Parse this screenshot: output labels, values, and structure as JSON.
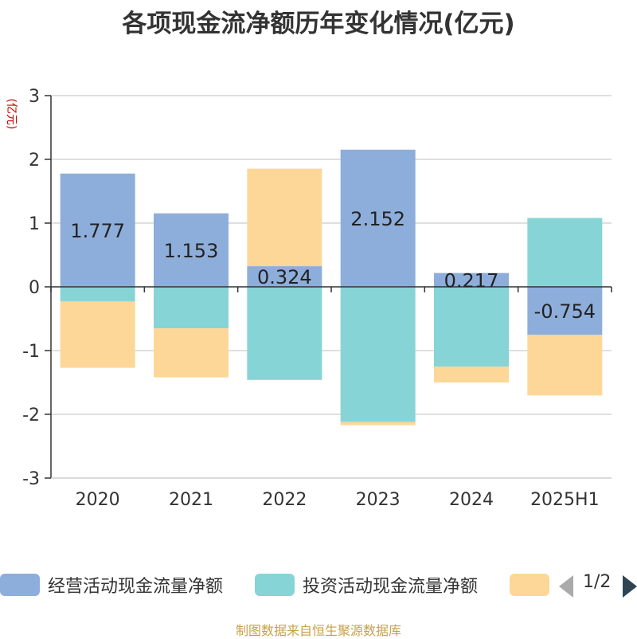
{
  "chart_data": {
    "type": "bar",
    "stacked": true,
    "title": "各项现金流净额历年变化情况(亿元)",
    "ylabel": "(亿元)",
    "xlabel": "",
    "ylim": [
      -3,
      3
    ],
    "yticks": [
      -3,
      -2,
      -1,
      0,
      1,
      2,
      3
    ],
    "grid": true,
    "legend_position": "bottom",
    "categories": [
      "2020",
      "2021",
      "2022",
      "2023",
      "2024",
      "2025H1"
    ],
    "series": [
      {
        "name": "经营活动现金流量净额",
        "color": "#8daedb",
        "values": [
          1.777,
          1.153,
          0.324,
          2.152,
          0.217,
          -0.754
        ],
        "show_labels": true
      },
      {
        "name": "投资活动现金流量净额",
        "color": "#87d4d6",
        "values": [
          -0.23,
          -0.65,
          -1.46,
          -2.12,
          -1.25,
          1.08
        ],
        "show_labels": false
      },
      {
        "name": "",
        "color": "#fdd797",
        "values": [
          -1.04,
          -0.77,
          1.53,
          -0.05,
          -0.25,
          -0.95
        ],
        "show_labels": false
      }
    ]
  },
  "legend": {
    "pager_text": "1/2"
  },
  "source_note": "制图数据来自恒生聚源数据库"
}
